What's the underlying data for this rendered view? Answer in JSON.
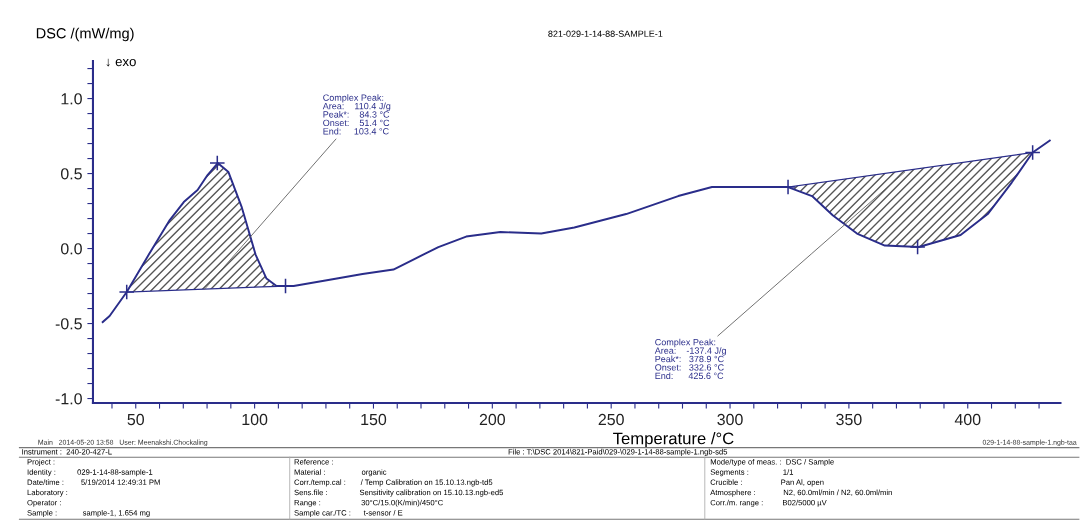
{
  "chart_data": {
    "type": "line",
    "title": "821-029-1-14-88-SAMPLE-1",
    "ylabel": "DSC /(mW/mg)",
    "xlabel": "Temperature /°C",
    "xlim": [
      32,
      439
    ],
    "ylim": [
      -1.03,
      1.25
    ],
    "xticks": [
      {
        "value": 40,
        "label": null
      },
      50,
      {
        "value": 60,
        "label": null
      },
      {
        "value": 70,
        "label": null
      },
      {
        "value": 80,
        "label": null
      },
      {
        "value": 90,
        "label": null
      },
      100,
      {
        "value": 110,
        "label": null
      },
      {
        "value": 120,
        "label": null
      },
      {
        "value": 130,
        "label": null
      },
      {
        "value": 140,
        "label": null
      },
      150,
      {
        "value": 160,
        "label": null
      },
      {
        "value": 170,
        "label": null
      },
      {
        "value": 180,
        "label": null
      },
      {
        "value": 190,
        "label": null
      },
      200,
      {
        "value": 210,
        "label": null
      },
      {
        "value": 220,
        "label": null
      },
      {
        "value": 230,
        "label": null
      },
      {
        "value": 240,
        "label": null
      },
      250,
      {
        "value": 260,
        "label": null
      },
      {
        "value": 270,
        "label": null
      },
      {
        "value": 280,
        "label": null
      },
      {
        "value": 290,
        "label": null
      },
      300,
      {
        "value": 310,
        "label": null
      },
      {
        "value": 320,
        "label": null
      },
      {
        "value": 330,
        "label": null
      },
      {
        "value": 340,
        "label": null
      },
      350,
      {
        "value": 360,
        "label": null
      },
      {
        "value": 370,
        "label": null
      },
      {
        "value": 380,
        "label": null
      },
      {
        "value": 390,
        "label": null
      },
      400,
      {
        "value": 410,
        "label": null
      },
      {
        "value": 420,
        "label": null
      },
      {
        "value": 430,
        "label": null
      }
    ],
    "yticks": [
      {
        "value": -1.0,
        "label": "-1.0"
      },
      {
        "value": -0.9,
        "label": null
      },
      {
        "value": -0.8,
        "label": null
      },
      {
        "value": -0.7,
        "label": null
      },
      {
        "value": -0.6,
        "label": null
      },
      -0.5,
      {
        "value": -0.4,
        "label": null
      },
      {
        "value": -0.3,
        "label": null
      },
      {
        "value": -0.2,
        "label": null
      },
      {
        "value": -0.1,
        "label": null
      },
      {
        "value": 0.0,
        "label": "0.0"
      },
      {
        "value": 0.1,
        "label": null
      },
      {
        "value": 0.2,
        "label": null
      },
      {
        "value": 0.3,
        "label": null
      },
      {
        "value": 0.4,
        "label": null
      },
      0.5,
      {
        "value": 0.6,
        "label": null
      },
      {
        "value": 0.7,
        "label": null
      },
      {
        "value": 0.8,
        "label": null
      },
      {
        "value": 0.9,
        "label": null
      },
      {
        "value": 1.0,
        "label": "1.0"
      },
      {
        "value": 1.1,
        "label": null
      },
      {
        "value": 1.2,
        "label": null
      }
    ],
    "grid": false,
    "legend": false,
    "series": [
      {
        "color": "#2a2d8a",
        "x": [
          36.1,
          39,
          46.2,
          55.5,
          64.3,
          70.2,
          76,
          80.2,
          84.5,
          89,
          94.5,
          100.4,
          105,
          109.2,
          116.4,
          131,
          145.4,
          158.4,
          167.2,
          177.3,
          189,
          203.4,
          220.6,
          234.5,
          256.3,
          278.2,
          292.4,
          307.1,
          324.4,
          334.5,
          343.3,
          353.4,
          365.1,
          379.4,
          397,
          408.4,
          418.5,
          427.3,
          434.5
        ],
        "values": [
          -0.49,
          -0.45,
          -0.29,
          -0.04,
          0.19,
          0.31,
          0.39,
          0.49,
          0.57,
          0.51,
          0.28,
          -0.04,
          -0.2,
          -0.25,
          -0.25,
          -0.21,
          -0.17,
          -0.14,
          -0.07,
          0.01,
          0.08,
          0.11,
          0.1,
          0.14,
          0.23,
          0.35,
          0.41,
          0.41,
          0.41,
          0.35,
          0.22,
          0.1,
          0.02,
          0.01,
          0.09,
          0.23,
          0.44,
          0.64,
          0.72
        ]
      },
      {
        "type": "area",
        "color": "#555555",
        "x": [
          46.2,
          55.5,
          64.3,
          70.2,
          76,
          80.2,
          84.5,
          89,
          94.5,
          100.4,
          105,
          109.2,
          113
        ],
        "values": [
          -0.29,
          -0.04,
          0.19,
          0.31,
          0.39,
          0.49,
          0.57,
          0.51,
          0.28,
          -0.04,
          -0.2,
          -0.25,
          -0.25
        ]
      },
      {
        "type": "area",
        "color": "#555555",
        "x": [
          324.4,
          334.5,
          343.3,
          353.4,
          365.1,
          379.4,
          397,
          408.4,
          418.5,
          427.3
        ],
        "values": [
          0.41,
          0.35,
          0.22,
          0.1,
          0.02,
          0.01,
          0.09,
          0.23,
          0.44,
          0.64
        ]
      },
      {
        "type": "scatter",
        "color": "#2a2d8a",
        "marker": "cross",
        "x": [
          46.2,
          84.3,
          113,
          324.4,
          378.9,
          427.3
        ],
        "values": [
          -0.29,
          0.57,
          -0.25,
          0.41,
          0.01,
          0.64
        ]
      }
    ],
    "annotations": [
      "↓ exo",
      {
        "text": "Complex Peak:\nArea:    110.4 J/g\nPeak*:    84.3 °C\nOnset:    51.4 °C\nEnd:     103.4 °C",
        "x": 79,
        "y": -0.27
      },
      {
        "text": "Complex Peak:\nArea:    -137.4 J/g\nPeak*:   378.9 °C\nOnset:   332.6 °C\nEnd:      425.6 °C",
        "x": 373.5,
        "y": 0.51
      },
      "Main   2014-05-20 13:58   User: Meenakshi.Chockaling",
      "029-1-14-88-sample-1.ngb-taa",
      "Instrument :  240-20-427-L",
      "File : T:\\DSC 2014\\821-Paid\\029-\\029-1-14-88-sample-1.ngb-sd5",
      "Project :",
      "Identity :          029-1-14-88-sample-1",
      "Date/time :        5/19/2014 12:49:31 PM",
      "Laboratory :",
      "Operator :",
      "Sample :            sample-1, 1.654 mg",
      "Reference :",
      "Material :                 organic",
      "Corr./temp.cal :       / Temp Calibration on 15.10.13.ngb-td5",
      "Sens.file :               Sensitivity calibration on 15.10.13.ngb-ed5",
      "Range :                   30°C/15.0(K/min)/450°C",
      "Sample car./TC :      t-sensor / E",
      "Mode/type of meas. :  DSC / Sample",
      "Segments :                1/1",
      "Crucible :                  Pan Al, open",
      "Atmosphere :             N2, 60.0ml/min / N2, 60.0ml/min",
      "Corr./m. range :         B02/5000 µV"
    ]
  }
}
